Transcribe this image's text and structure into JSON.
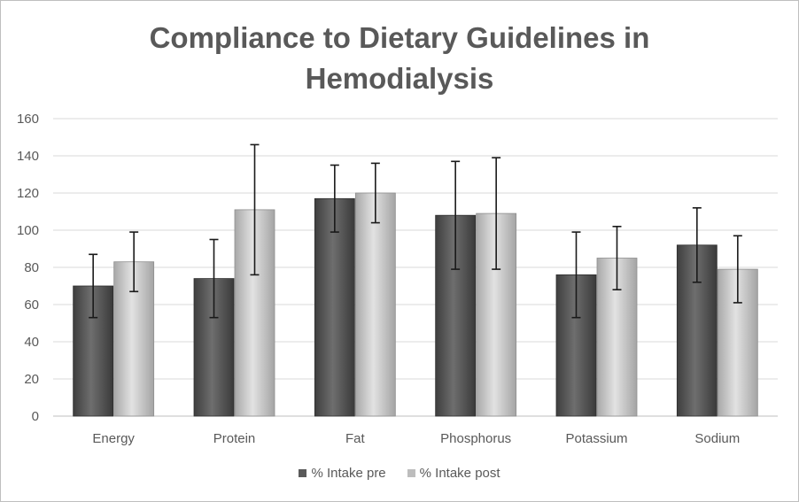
{
  "chart_data": {
    "type": "bar",
    "title_lines": [
      "Compliance to Dietary Guidelines in",
      "Hemodialysis"
    ],
    "categories": [
      "Energy",
      "Protein",
      "Fat",
      "Phosphorus",
      "Potassium",
      "Sodium"
    ],
    "series": [
      {
        "name": "% Intake pre",
        "color": "#5a5a5a",
        "values": [
          70,
          74,
          117,
          108,
          76,
          92
        ],
        "error_low": [
          53,
          53,
          99,
          79,
          53,
          72
        ],
        "error_high": [
          87,
          95,
          135,
          137,
          99,
          112
        ]
      },
      {
        "name": "% Intake post",
        "color": "#bdbdbd",
        "values": [
          83,
          111,
          120,
          109,
          85,
          79
        ],
        "error_low": [
          67,
          76,
          104,
          79,
          68,
          61
        ],
        "error_high": [
          99,
          146,
          136,
          139,
          102,
          97
        ]
      }
    ],
    "ylim": [
      0,
      160
    ],
    "yticks": [
      0,
      20,
      40,
      60,
      80,
      100,
      120,
      140,
      160
    ],
    "grid": true,
    "legend_position": "bottom"
  }
}
